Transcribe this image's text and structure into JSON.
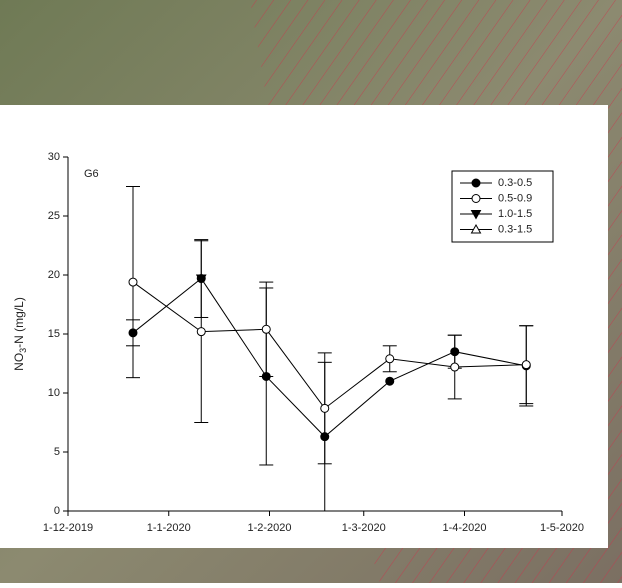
{
  "chart_data": {
    "type": "line",
    "annotation": "G6",
    "ylabel": "NO3-N (mg/L)",
    "x": [
      "2019-12-21",
      "2020-01-11",
      "2020-01-31",
      "2020-02-18",
      "2020-03-09",
      "2020-03-29",
      "2020-04-20"
    ],
    "xlim": [
      "2019-12-01",
      "2020-05-01"
    ],
    "xticks": [
      {
        "value": "2019-12-01",
        "label": "1-12-2019"
      },
      {
        "value": "2020-01-01",
        "label": "1-1-2020"
      },
      {
        "value": "2020-02-01",
        "label": "1-2-2020"
      },
      {
        "value": "2020-03-01",
        "label": "1-3-2020"
      },
      {
        "value": "2020-04-01",
        "label": "1-4-2020"
      },
      {
        "value": "2020-05-01",
        "label": "1-5-2020"
      }
    ],
    "ylim": [
      0,
      30
    ],
    "yticks": [
      0,
      5,
      10,
      15,
      20,
      25,
      30
    ],
    "legend": "top-right",
    "series": [
      {
        "name": "0.3-0.5",
        "color": "#000000",
        "marker": "circle-filled",
        "values": [
          15.1,
          19.7,
          11.4,
          6.3,
          11.0,
          13.5,
          12.3
        ],
        "errors": [
          1.1,
          3.3,
          7.5,
          6.3,
          0,
          1.4,
          3.4
        ]
      },
      {
        "name": "0.5-0.9",
        "color": "#000000",
        "marker": "circle-open",
        "values": [
          19.4,
          15.2,
          15.4,
          8.7,
          12.9,
          12.2,
          12.4
        ],
        "errors": [
          8.1,
          7.7,
          4.0,
          4.7,
          1.1,
          2.7,
          3.3
        ]
      },
      {
        "name": "1.0-1.5",
        "color": "#000000",
        "marker": "triangle-down-filled",
        "values": [
          null,
          19.7,
          null,
          null,
          null,
          null,
          null
        ],
        "errors": [
          null,
          null,
          null,
          null,
          null,
          null,
          null
        ]
      },
      {
        "name": "0.3-1.5",
        "color": "#000000",
        "marker": "triangle-up-open",
        "values": [
          null,
          null,
          null,
          null,
          null,
          null,
          null
        ],
        "errors": [
          null,
          null,
          null,
          null,
          null,
          null,
          null
        ]
      }
    ]
  }
}
